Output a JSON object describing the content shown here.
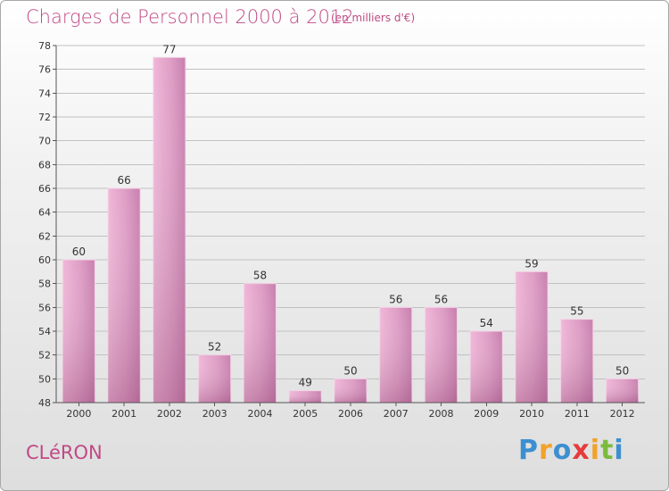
{
  "header": {
    "title": "Charges de Personnel 2000 à 2012",
    "subtitle": "(en milliers d'€)"
  },
  "footer": {
    "town": "CLéRON",
    "logo_text": "Proxiti"
  },
  "colors": {
    "title": "#c04a85",
    "bar_light": "#e9a8cf",
    "bar_dark": "#b56a98",
    "grid": "#c0c0c0"
  },
  "chart_data": {
    "type": "bar",
    "categories": [
      "2000",
      "2001",
      "2002",
      "2003",
      "2004",
      "2005",
      "2006",
      "2007",
      "2008",
      "2009",
      "2010",
      "2011",
      "2012"
    ],
    "values": [
      60,
      66,
      77,
      52,
      58,
      49,
      50,
      56,
      56,
      54,
      59,
      55,
      50
    ],
    "title": "Charges de Personnel 2000 à 2012",
    "subtitle": "(en milliers d'€)",
    "ylim": [
      48,
      78
    ],
    "yticks": [
      48,
      50,
      52,
      54,
      56,
      58,
      60,
      62,
      64,
      66,
      68,
      70,
      72,
      74,
      76,
      78
    ],
    "grid": true,
    "legend": "none"
  }
}
